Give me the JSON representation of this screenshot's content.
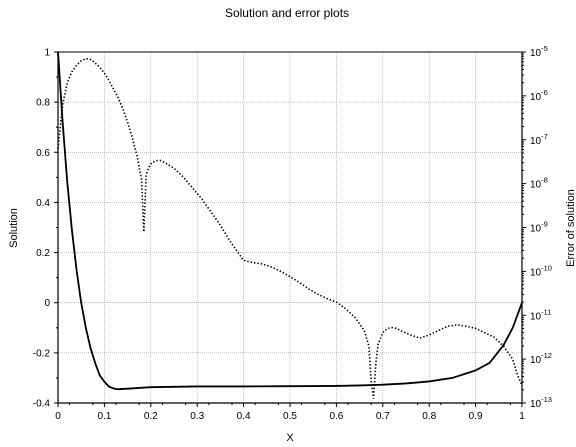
{
  "chart_data": {
    "type": "line",
    "title": "Solution and error plots",
    "xlabel": "X",
    "ylabel": "Solution",
    "y2label": "Error of solution",
    "xlim": [
      0,
      1
    ],
    "ylim": [
      -0.4,
      1
    ],
    "y2lim_exponent": [
      -13,
      -5
    ],
    "y2_scale": "log",
    "grid": true,
    "x_ticks": [
      "0",
      "0.1",
      "0.2",
      "0.3",
      "0.4",
      "0.5",
      "0.6",
      "0.7",
      "0.8",
      "0.9",
      "1"
    ],
    "y_ticks": [
      "-0.4",
      "-0.2",
      "0",
      "0.2",
      "0.4",
      "0.6",
      "0.8",
      "1"
    ],
    "y2_ticks": [
      "-13",
      "-12",
      "-11",
      "-10",
      "-9",
      "-8",
      "-7",
      "-6",
      "-5"
    ],
    "y2_tick_base": "10",
    "series": [
      {
        "axis": "left",
        "style": "solid",
        "x": [
          0,
          0.01,
          0.02,
          0.03,
          0.04,
          0.05,
          0.06,
          0.07,
          0.08,
          0.09,
          0.1,
          0.11,
          0.12,
          0.13,
          0.15,
          0.2,
          0.3,
          0.4,
          0.5,
          0.6,
          0.65,
          0.7,
          0.75,
          0.8,
          0.85,
          0.9,
          0.93,
          0.96,
          0.98,
          1
        ],
        "y": [
          1,
          0.72,
          0.48,
          0.29,
          0.13,
          0.0,
          -0.1,
          -0.18,
          -0.24,
          -0.29,
          -0.315,
          -0.335,
          -0.342,
          -0.345,
          -0.343,
          -0.337,
          -0.334,
          -0.334,
          -0.333,
          -0.332,
          -0.33,
          -0.327,
          -0.322,
          -0.314,
          -0.3,
          -0.27,
          -0.24,
          -0.17,
          -0.1,
          0
        ]
      },
      {
        "axis": "right",
        "style": "dotted",
        "x": [
          0,
          0.01,
          0.02,
          0.03,
          0.04,
          0.05,
          0.06,
          0.07,
          0.08,
          0.09,
          0.1,
          0.11,
          0.12,
          0.13,
          0.14,
          0.15,
          0.16,
          0.17,
          0.18,
          0.185,
          0.19,
          0.195,
          0.2,
          0.21,
          0.22,
          0.23,
          0.25,
          0.27,
          0.29,
          0.31,
          0.33,
          0.35,
          0.37,
          0.39,
          0.4,
          0.42,
          0.44,
          0.46,
          0.48,
          0.5,
          0.52,
          0.54,
          0.56,
          0.58,
          0.6,
          0.62,
          0.64,
          0.66,
          0.67,
          0.675,
          0.68,
          0.685,
          0.69,
          0.7,
          0.71,
          0.72,
          0.73,
          0.74,
          0.76,
          0.78,
          0.8,
          0.82,
          0.84,
          0.86,
          0.88,
          0.9,
          0.92,
          0.94,
          0.96,
          0.98,
          0.99,
          1
        ],
        "y": [
          -7.2,
          -6.2,
          -5.7,
          -5.45,
          -5.3,
          -5.2,
          -5.15,
          -5.17,
          -5.25,
          -5.35,
          -5.48,
          -5.65,
          -5.85,
          -6.05,
          -6.3,
          -6.6,
          -6.95,
          -7.35,
          -7.9,
          -9.1,
          -7.8,
          -7.65,
          -7.55,
          -7.48,
          -7.47,
          -7.52,
          -7.65,
          -7.85,
          -8.1,
          -8.35,
          -8.65,
          -8.95,
          -9.3,
          -9.6,
          -9.75,
          -9.8,
          -9.83,
          -9.9,
          -10.0,
          -10.12,
          -10.25,
          -10.4,
          -10.52,
          -10.62,
          -10.7,
          -10.85,
          -11.05,
          -11.35,
          -11.7,
          -12.5,
          -12.9,
          -12.1,
          -11.65,
          -11.4,
          -11.3,
          -11.28,
          -11.3,
          -11.36,
          -11.45,
          -11.52,
          -11.45,
          -11.35,
          -11.25,
          -11.22,
          -11.25,
          -11.3,
          -11.4,
          -11.5,
          -11.7,
          -12.0,
          -12.35,
          -12.6
        ]
      }
    ]
  }
}
